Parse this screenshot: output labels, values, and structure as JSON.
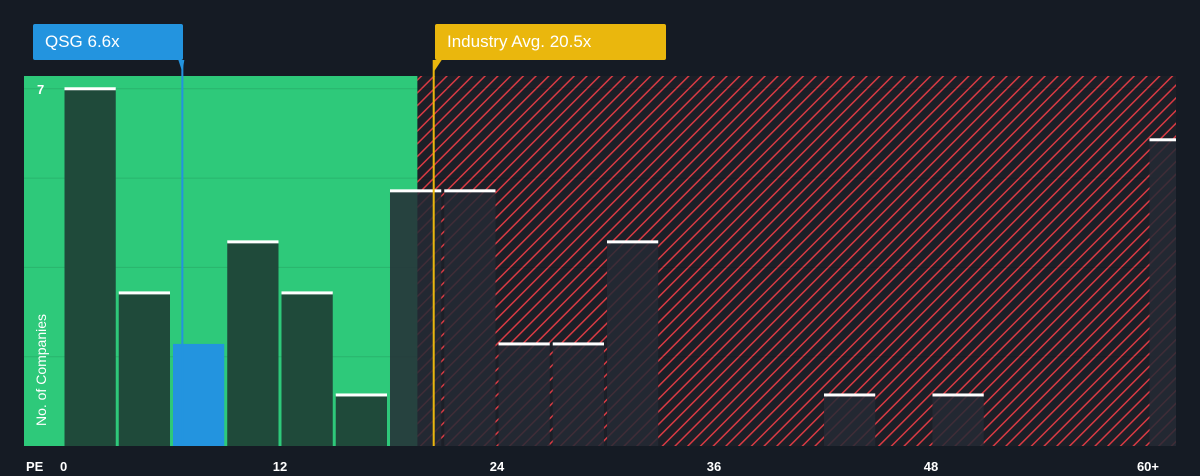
{
  "company_label": "QSG 6.6x",
  "industry_label": "Industry Avg. 20.5x",
  "chart_data": {
    "type": "bar",
    "title": "",
    "xlabel": "PE",
    "ylabel": "No. of Companies",
    "x_ticks": [
      0,
      12,
      24,
      36,
      48,
      "60+"
    ],
    "xlim": [
      0,
      61.5
    ],
    "ylim": [
      0,
      7.25
    ],
    "y_ticks": [
      7
    ],
    "bin_width": 3,
    "bins": [
      {
        "start": 0,
        "count": 7
      },
      {
        "start": 3,
        "count": 3
      },
      {
        "start": 6,
        "count": 2
      },
      {
        "start": 9,
        "count": 4
      },
      {
        "start": 12,
        "count": 3
      },
      {
        "start": 15,
        "count": 1
      },
      {
        "start": 18,
        "count": 5
      },
      {
        "start": 21,
        "count": 5
      },
      {
        "start": 24,
        "count": 2
      },
      {
        "start": 27,
        "count": 2
      },
      {
        "start": 30,
        "count": 4
      },
      {
        "start": 42,
        "count": 1
      },
      {
        "start": 48,
        "count": 1
      },
      {
        "start": 60,
        "count": 6
      }
    ],
    "highlight": {
      "name": "QSG",
      "pe": 6.6
    },
    "industry_average": 20.5,
    "fair_zone_end": 19.6,
    "colors": {
      "background": "#151b24",
      "fair_zone": "#2ec97a",
      "overvalued_hatch": "#d83a43",
      "bar": "#1f4a3a",
      "bar_outside": "#242a35",
      "highlight": "#2394df",
      "industry": "#eab70d",
      "bar_cap": "#ffffff"
    }
  }
}
